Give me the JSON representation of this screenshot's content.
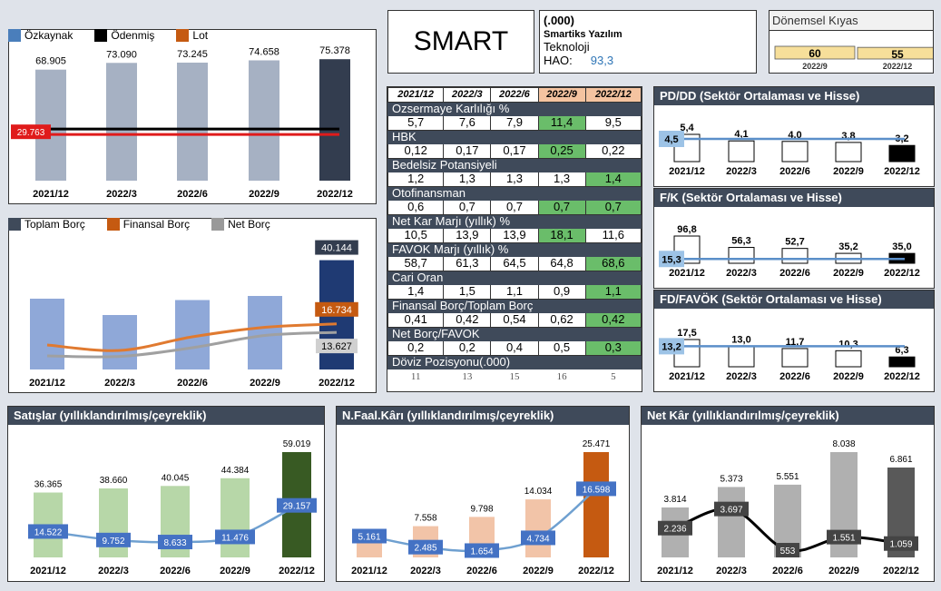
{
  "header": {
    "ticker": "SMART",
    "code": "(.000)",
    "company": "Smartiks Yazılım",
    "sector": "Teknoloji",
    "hao_label": "HAO:",
    "hao_value": "93,3"
  },
  "period_compare": {
    "title": "Dönemsel Kıyas",
    "bars": [
      {
        "label": "2022/9",
        "value": 60
      },
      {
        "label": "2022/12",
        "value": 55
      }
    ]
  },
  "colors": {
    "dark_header": "#3f4a5a",
    "equity_bar": "#a6b1c3",
    "equity_last": "#333d4f",
    "paid_line": "#000000",
    "lot_line": "#e01b1b",
    "debt_bar": "#8fa8d8",
    "debt_last": "#1f3a73",
    "fin_debt_line": "#e07a30",
    "net_debt_line": "#a0a0a0",
    "sales_bar": "#b7d7a8",
    "sales_last": "#385a23",
    "op_bar": "#f2c4a8",
    "op_last": "#c55a11",
    "np_bar": "#b0b0b0",
    "np_last": "#595959",
    "blue_label": "#4472c4",
    "green_cell": "#6abd6a"
  },
  "chart_data": [
    {
      "id": "equity",
      "type": "bar",
      "legend": [
        "Özkaynak",
        "Ödenmiş",
        "Lot"
      ],
      "categories": [
        "2021/12",
        "2022/3",
        "2022/6",
        "2022/9",
        "2022/12"
      ],
      "series": [
        {
          "name": "Özkaynak",
          "values": [
            68905,
            73090,
            73245,
            74658,
            75378
          ]
        }
      ],
      "value_labels": [
        "68.905",
        "73.090",
        "73.245",
        "74.658",
        "75.378"
      ],
      "lines": [
        {
          "name": "Lot",
          "value": 29763,
          "label": "29.763"
        }
      ]
    },
    {
      "id": "debt",
      "type": "bar",
      "legend": [
        "Toplam Borç",
        "Finansal Borç",
        "Net Borç"
      ],
      "categories": [
        "2021/12",
        "2022/3",
        "2022/6",
        "2022/9",
        "2022/12"
      ],
      "series": [
        {
          "name": "Toplam Borç",
          "values": [
            26000,
            20000,
            25500,
            27000,
            40144
          ]
        },
        {
          "name": "Finansal Borç",
          "values": [
            9000,
            7000,
            12000,
            15500,
            16734
          ]
        },
        {
          "name": "Net Borç",
          "values": [
            5000,
            4800,
            8000,
            12500,
            13627
          ]
        }
      ],
      "last_labels": [
        "40.144",
        "16.734",
        "13.627"
      ]
    },
    {
      "id": "pddd",
      "type": "bar",
      "title": "PD/DD (Sektör Ortalaması ve Hisse)",
      "categories": [
        "2021/12",
        "2022/3",
        "2022/6",
        "2022/9",
        "2022/12"
      ],
      "values": [
        5.4,
        4.1,
        4.0,
        3.8,
        3.2
      ],
      "value_labels": [
        "5,4",
        "4,1",
        "4,0",
        "3,8",
        "3,2"
      ],
      "sector_avg": 4.5,
      "sector_avg_label": "4,5"
    },
    {
      "id": "fk",
      "type": "bar",
      "title": "F/K (Sektör Ortalaması ve Hisse)",
      "categories": [
        "2021/12",
        "2022/3",
        "2022/6",
        "2022/9",
        "2022/12"
      ],
      "values": [
        96.8,
        56.3,
        52.7,
        35.2,
        35.0
      ],
      "value_labels": [
        "96,8",
        "56,3",
        "52,7",
        "35,2",
        "35,0"
      ],
      "sector_avg": 15.3,
      "sector_avg_label": "15,3"
    },
    {
      "id": "fdfavok",
      "type": "bar",
      "title": "FD/FAVÖK (Sektör Ortalaması ve Hisse)",
      "categories": [
        "2021/12",
        "2022/3",
        "2022/6",
        "2022/9",
        "2022/12"
      ],
      "values": [
        17.5,
        13.0,
        11.7,
        10.3,
        6.3
      ],
      "value_labels": [
        "17,5",
        "13,0",
        "11,7",
        "10,3",
        "6,3"
      ],
      "sector_avg": 13.2,
      "sector_avg_label": "13,2"
    },
    {
      "id": "sales",
      "type": "bar",
      "title": "Satışlar (yıllıklandırılmış/çeyreklik)",
      "categories": [
        "2021/12",
        "2022/3",
        "2022/6",
        "2022/9",
        "2022/12"
      ],
      "annual": [
        36365,
        38660,
        40045,
        44384,
        59019
      ],
      "annual_labels": [
        "36.365",
        "38.660",
        "40.045",
        "44.384",
        "59.019"
      ],
      "quarterly": [
        14522,
        9752,
        8633,
        11476,
        29157
      ],
      "quarterly_labels": [
        "14.522",
        "9.752",
        "8.633",
        "11.476",
        "29.157"
      ]
    },
    {
      "id": "opprofit",
      "type": "bar",
      "title": "N.Faal.Kârı (yıllıklandırılmış/çeyreklik)",
      "categories": [
        "2021/12",
        "2022/3",
        "2022/6",
        "2022/9",
        "2022/12"
      ],
      "annual": [
        5161,
        7558,
        9798,
        14034,
        25471
      ],
      "annual_labels": [
        "",
        "7.558",
        "9.798",
        "14.034",
        "25.471"
      ],
      "quarterly": [
        5161,
        2485,
        1654,
        4734,
        16598
      ],
      "quarterly_labels": [
        "5.161",
        "2.485",
        "1.654",
        "4.734",
        "16.598"
      ]
    },
    {
      "id": "netprofit",
      "type": "bar",
      "title": "Net Kâr (yıllıklandırılmış/çeyreklik)",
      "categories": [
        "2021/12",
        "2022/3",
        "2022/6",
        "2022/9",
        "2022/12"
      ],
      "annual": [
        3814,
        5373,
        5551,
        8038,
        6861
      ],
      "annual_labels": [
        "3.814",
        "5.373",
        "5.551",
        "8.038",
        "6.861"
      ],
      "quarterly": [
        2236,
        3697,
        553,
        1551,
        1059
      ],
      "quarterly_labels": [
        "2.236",
        "3.697",
        "553",
        "1.551",
        "1.059"
      ]
    }
  ],
  "ratios": {
    "periods": [
      "2021/12",
      "2022/3",
      "2022/6",
      "2022/9",
      "2022/12"
    ],
    "metrics": [
      {
        "name": "Ozsermaye Karlılığı %",
        "values": [
          "5,7",
          "7,6",
          "7,9",
          "11,4",
          "9,5"
        ],
        "green": [
          false,
          false,
          false,
          true,
          false
        ]
      },
      {
        "name": "HBK",
        "values": [
          "0,12",
          "0,17",
          "0,17",
          "0,25",
          "0,22"
        ],
        "green": [
          false,
          false,
          false,
          true,
          false
        ]
      },
      {
        "name": "Bedelsiz Potansiyeli",
        "values": [
          "1,2",
          "1,3",
          "1,3",
          "1,3",
          "1,4"
        ],
        "green": [
          false,
          false,
          false,
          false,
          true
        ]
      },
      {
        "name": "Otofinansman",
        "values": [
          "0,6",
          "0,7",
          "0,7",
          "0,7",
          "0,7"
        ],
        "green": [
          false,
          false,
          false,
          true,
          true
        ]
      },
      {
        "name": "Net Kar Marjı (yıllık) %",
        "values": [
          "10,5",
          "13,9",
          "13,9",
          "18,1",
          "11,6"
        ],
        "green": [
          false,
          false,
          false,
          true,
          false
        ]
      },
      {
        "name": "FAVOK Marjı (yıllık) %",
        "values": [
          "58,7",
          "61,3",
          "64,5",
          "64,8",
          "68,6"
        ],
        "green": [
          false,
          false,
          false,
          false,
          true
        ]
      },
      {
        "name": "Cari Oran",
        "values": [
          "1,4",
          "1,5",
          "1,1",
          "0,9",
          "1,1"
        ],
        "green": [
          false,
          false,
          false,
          false,
          true
        ]
      },
      {
        "name": "Finansal Borç/Toplam Borç",
        "values": [
          "0,41",
          "0,42",
          "0,54",
          "0,62",
          "0,42"
        ],
        "green": [
          false,
          false,
          false,
          false,
          true
        ]
      },
      {
        "name": "Net Borç/FAVOK",
        "values": [
          "0,2",
          "0,2",
          "0,4",
          "0,5",
          "0,3"
        ],
        "green": [
          false,
          false,
          false,
          false,
          true
        ]
      },
      {
        "name": "Döviz Pozisyonu(.000)",
        "values": [
          "11",
          "13",
          "15",
          "16",
          "5"
        ],
        "green": [
          false,
          false,
          false,
          false,
          false
        ]
      }
    ]
  }
}
